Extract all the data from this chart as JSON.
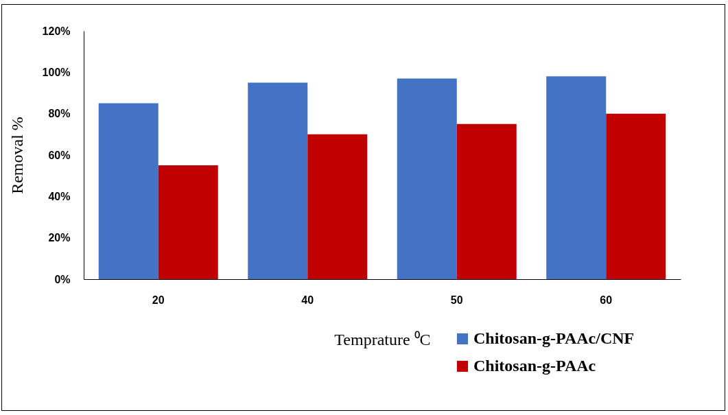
{
  "chart_data": {
    "type": "bar",
    "xlabel": "Temprature ⁰C",
    "ylabel": "Removal %",
    "categories": [
      "20",
      "40",
      "50",
      "60"
    ],
    "series": [
      {
        "name": "Chitosan-g-PAAc/CNF",
        "color": "#4472c4",
        "values": [
          85,
          95,
          97,
          98
        ]
      },
      {
        "name": "Chitosan-g-PAAc",
        "color": "#c00000",
        "values": [
          55,
          70,
          75,
          80
        ]
      }
    ],
    "ylim": [
      0,
      120
    ],
    "yticks": [
      {
        "value": 0,
        "label": "0%"
      },
      {
        "value": 20,
        "label": "20%"
      },
      {
        "value": 40,
        "label": "40%"
      },
      {
        "value": 60,
        "label": "60%"
      },
      {
        "value": 80,
        "label": "80%"
      },
      {
        "value": 100,
        "label": "100%"
      },
      {
        "value": 120,
        "label": "120%"
      }
    ],
    "grid": false,
    "legend": "bottom right"
  }
}
